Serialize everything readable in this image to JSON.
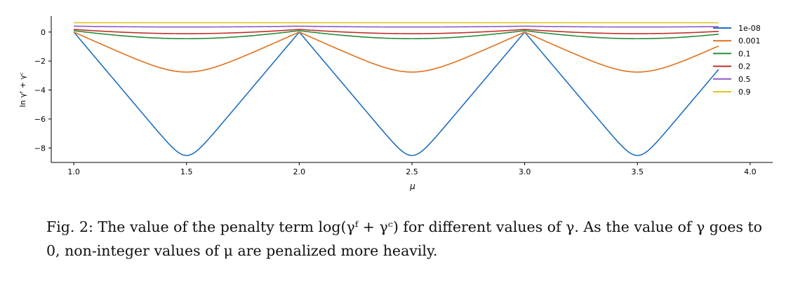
{
  "chart_data": {
    "type": "line",
    "xlabel": "μ",
    "ylabel": "ln γᶠ + γᶜ",
    "xlim": [
      0.9,
      4.1
    ],
    "ylim": [
      -9.0,
      1.1
    ],
    "xticks": [
      1.0,
      1.5,
      2.0,
      2.5,
      3.0,
      3.5,
      4.0
    ],
    "xtick_labels": [
      "1.0",
      "1.5",
      "2.0",
      "2.5",
      "3.0",
      "3.5",
      "4.0"
    ],
    "yticks": [
      0,
      -2,
      -4,
      -6,
      -8
    ],
    "ytick_labels": [
      "0",
      "−2",
      "−4",
      "−6",
      "−8"
    ],
    "x_range": [
      1.0,
      3.86
    ],
    "legend_position": "right",
    "grid": false,
    "series": [
      {
        "name": "1e-08",
        "gamma": 1e-08,
        "color": "#1f6fc0"
      },
      {
        "name": "0.001",
        "gamma": 0.001,
        "color": "#e0711b"
      },
      {
        "name": "0.1",
        "gamma": 0.1,
        "color": "#2a8a3a"
      },
      {
        "name": "0.2",
        "gamma": 0.2,
        "color": "#c0302a"
      },
      {
        "name": "0.5",
        "gamma": 0.5,
        "color": "#8a5cc4"
      },
      {
        "name": "0.9",
        "gamma": 0.9,
        "color": "#e3c21f"
      }
    ]
  },
  "caption": {
    "text": "Fig. 2: The value of the penalty term log(γᶠ + γᶜ) for different values of γ. As the value of γ goes to 0, non-integer values of μ are penalized more heavily."
  }
}
